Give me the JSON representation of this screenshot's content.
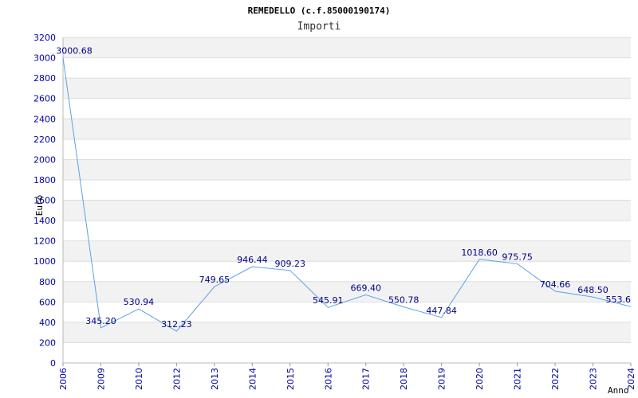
{
  "chart_data": {
    "type": "line",
    "title": "REMEDELLO (c.f.85000190174)",
    "subtitle": "Importi",
    "xlabel": "Anno",
    "ylabel": "Euro",
    "categories": [
      "2006",
      "2009",
      "2010",
      "2012",
      "2013",
      "2014",
      "2015",
      "2016",
      "2017",
      "2018",
      "2019",
      "2020",
      "2021",
      "2022",
      "2023",
      "2024"
    ],
    "values": [
      3000.68,
      345.2,
      530.94,
      312.23,
      749.65,
      946.44,
      909.23,
      545.91,
      669.4,
      550.78,
      447.84,
      1018.6,
      975.75,
      704.66,
      648.5,
      553.6
    ],
    "value_labels": [
      "3000.68",
      "345.20",
      "530.94",
      "312.23",
      "749.65",
      "946.44",
      "909.23",
      "545.91",
      "669.40",
      "550.78",
      "447.84",
      "1018.60",
      "975.75",
      "704.66",
      "648.50",
      "553.6"
    ],
    "yticks": [
      0,
      200,
      400,
      600,
      800,
      1000,
      1200,
      1400,
      1600,
      1800,
      2000,
      2200,
      2400,
      2600,
      2800,
      3000,
      3200
    ],
    "ylim": [
      0,
      3200
    ],
    "grid": true,
    "colors": {
      "line": "#5aa2e6",
      "band": "#f2f2f2",
      "grid": "#dddddd",
      "tick_text": "#0000aa",
      "label_text": "#000088"
    }
  }
}
